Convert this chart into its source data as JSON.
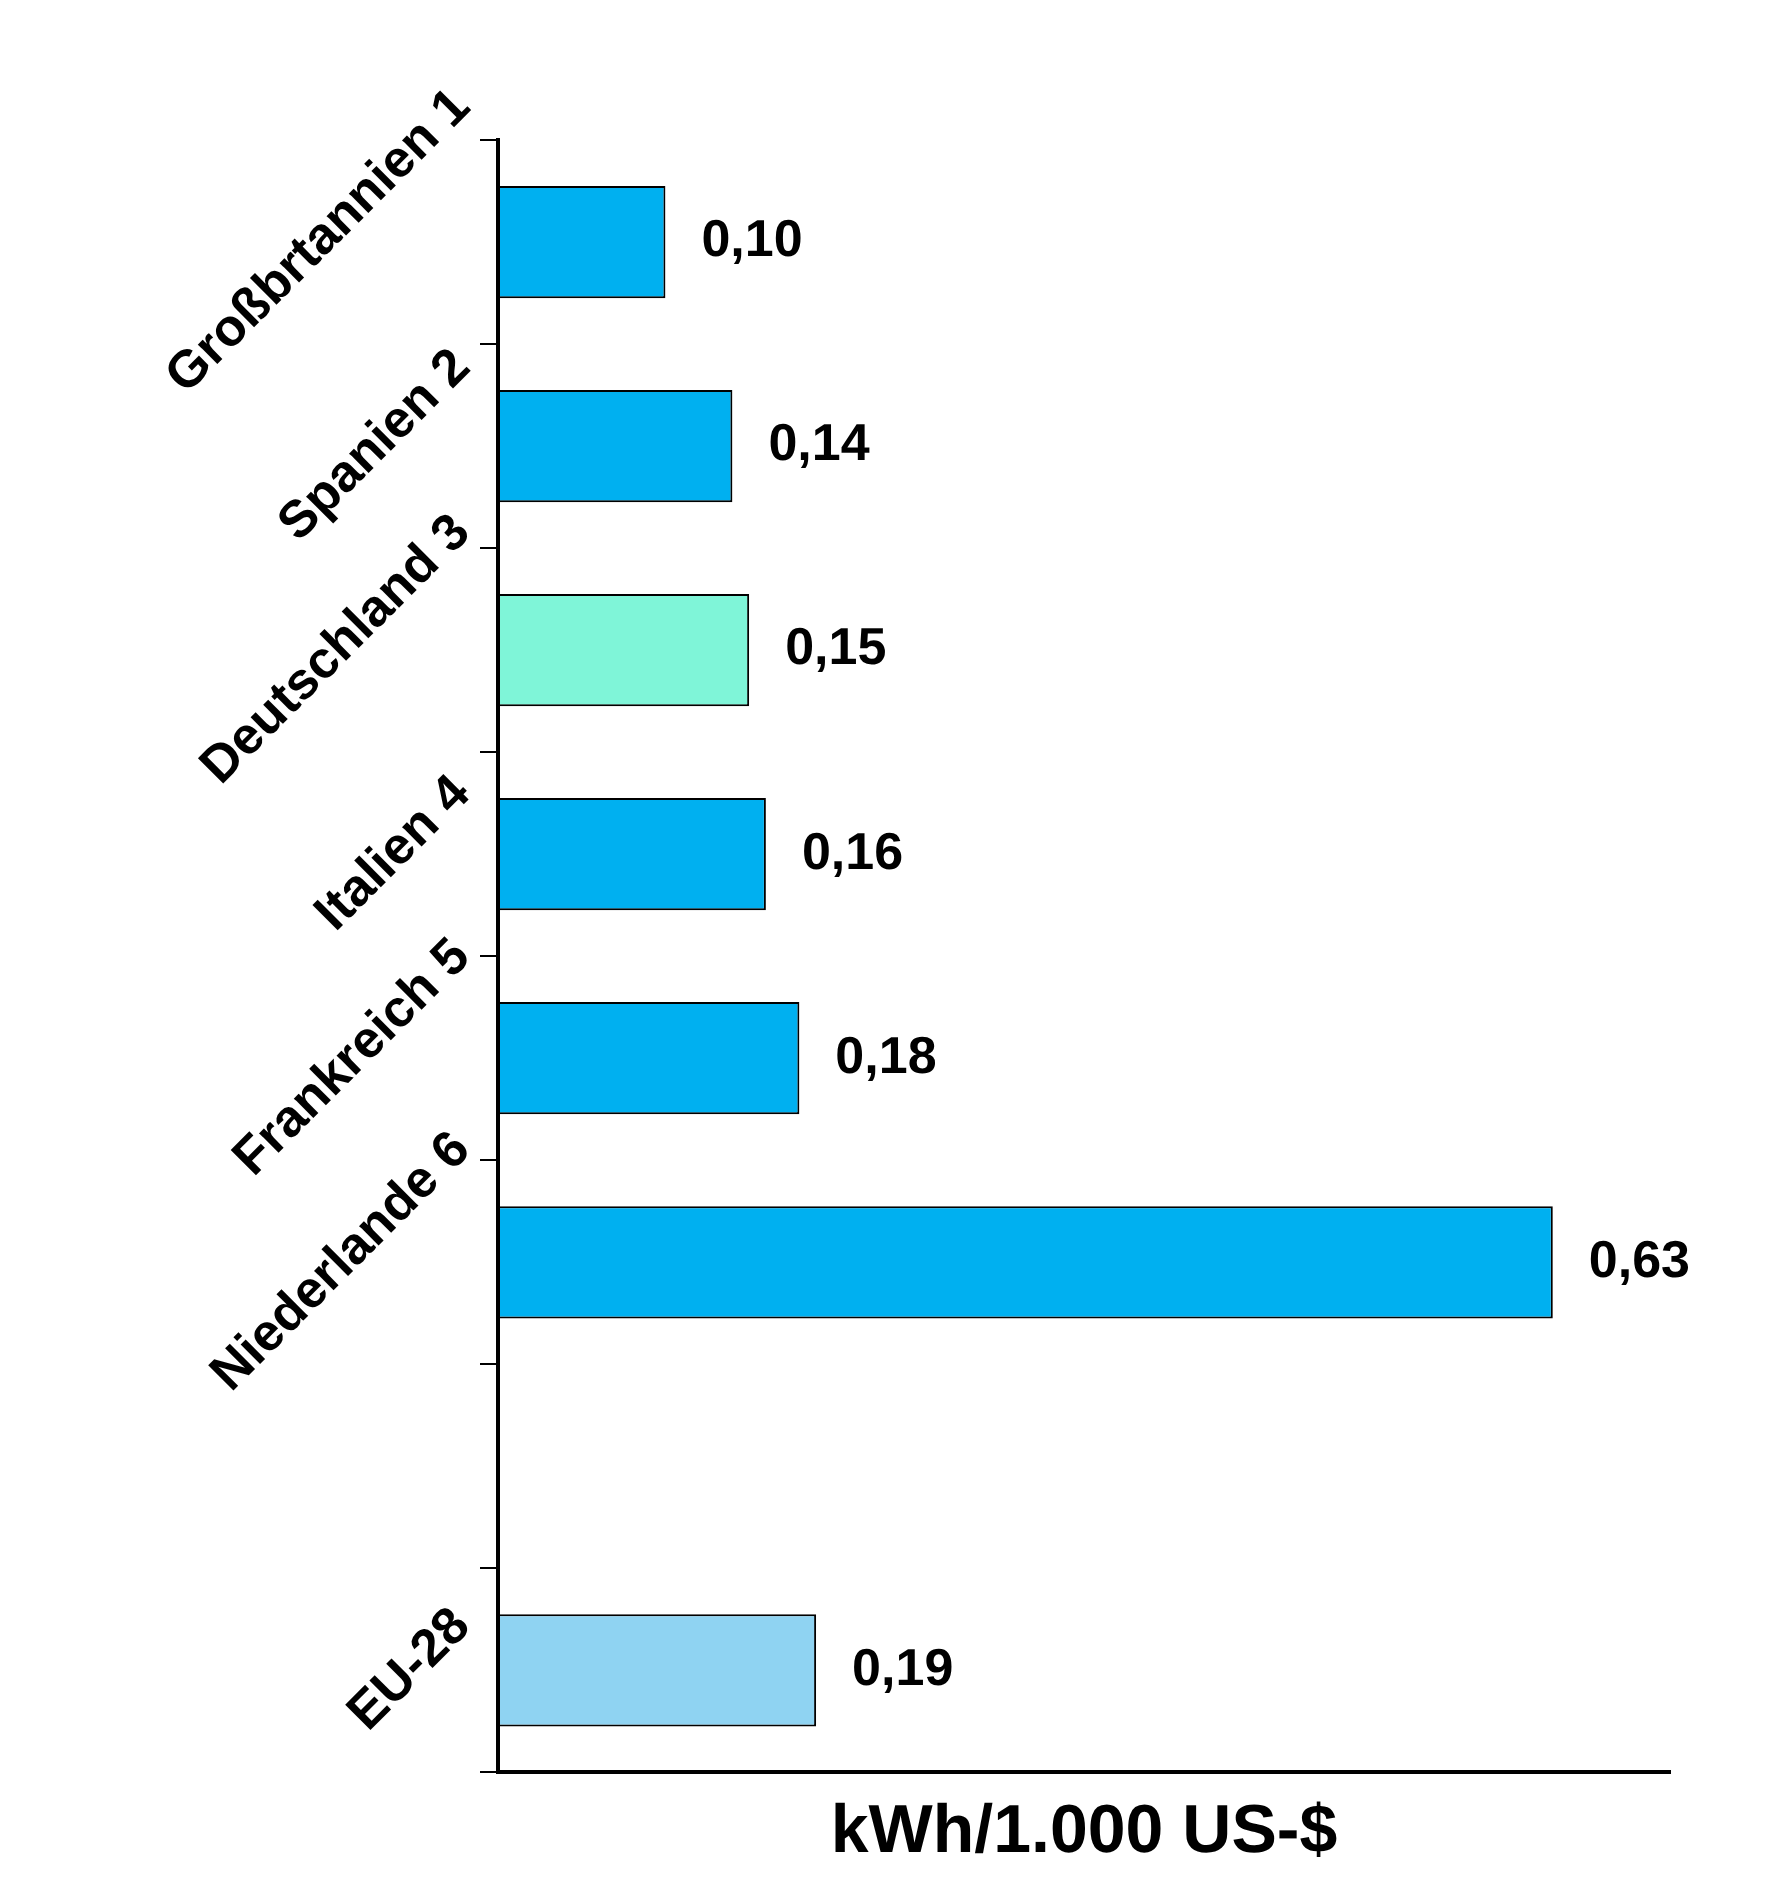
{
  "chart_data": {
    "type": "bar",
    "orientation": "horizontal",
    "xlabel": "kWh/1.000 US-$",
    "categories": [
      "Großbrtannien 1",
      "Spanien 2",
      "Deutschland 3",
      "Italien 4",
      "Frankreich 5",
      "Niederlande 6",
      null,
      "EU-28"
    ],
    "values": [
      0.1,
      0.14,
      0.15,
      0.16,
      0.18,
      0.63,
      null,
      0.19
    ],
    "value_labels": [
      "0,10",
      "0,14",
      "0,15",
      "0,16",
      "0,18",
      "0,63",
      null,
      "0,19"
    ],
    "colors": [
      "#00b0f0",
      "#00b0f0",
      "#7ff5d8",
      "#00b0f0",
      "#00b0f0",
      "#00b0f0",
      "#00b0f0",
      "#8fd3f2"
    ],
    "tick_labels": false,
    "grid": false,
    "legend": false
  }
}
